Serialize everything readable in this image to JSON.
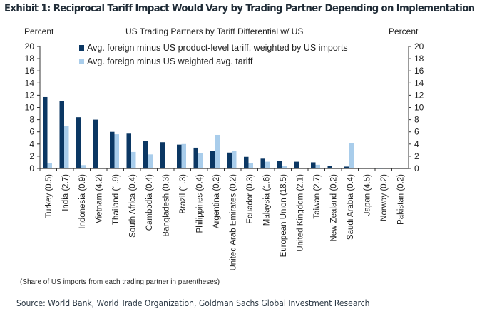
{
  "title": "Exhibit 1: Reciprocal Tariff Impact Would Vary by Trading Partner Depending on Implementation",
  "chart_data": {
    "type": "bar",
    "title": "US Trading  Partners by Tariff  Differential  w/ US",
    "ylabel_left": "Percent",
    "ylabel_right": "Percent",
    "xlabel": "",
    "ylim": [
      0,
      20
    ],
    "yticks": [
      0,
      2,
      4,
      6,
      8,
      10,
      12,
      14,
      16,
      18,
      20
    ],
    "grid": false,
    "legend_position": "top",
    "categories": [
      "Turkey (0.5)",
      "India (2.7)",
      "Indonesia (0.9)",
      "Vietnam (4.2)",
      "Thailand (1.9)",
      "South Africa (0.4)",
      "Cambodia (0.4)",
      "Bangladesh (0.3)",
      "Brazil (1.3)",
      "Philippines (0.4)",
      "Argentina (0.2)",
      "United Arab Emirates (0.2)",
      "Ecuador (0.3)",
      "Malaysia (1.6)",
      "European Union (18.5)",
      "United Kingdom (2.1)",
      "Taiwan (2.7)",
      "New Zealand (0.2)",
      "Saudi Arabia (0.4)",
      "Japan (4.5)",
      "Norway (0.2)",
      "Pakistan (0.2)"
    ],
    "series": [
      {
        "name": "Avg. foreign minus US product-level tariff, weighted by US imports",
        "color": "#0b3763",
        "values": [
          11.7,
          11.0,
          8.4,
          8.0,
          6.0,
          5.7,
          4.5,
          4.3,
          3.9,
          3.4,
          2.9,
          2.6,
          1.9,
          1.6,
          1.2,
          1.1,
          1.0,
          0.4,
          0.3,
          0.0,
          0.05,
          0.0
        ]
      },
      {
        "name": "Avg. foreign minus US weighted avg. tariff",
        "color": "#a9cdeb",
        "values": [
          0.9,
          6.9,
          0.55,
          0.0,
          5.6,
          2.7,
          2.3,
          0.0,
          4.0,
          2.5,
          5.5,
          2.9,
          0.9,
          1.1,
          0.4,
          0.0,
          0.6,
          0.0,
          4.2,
          0.1,
          0.0,
          0.0
        ]
      }
    ]
  },
  "footnote": "(Share of US imports from each trading partner in parentheses)",
  "source": "Source: World Bank, World Trade Organization, Goldman Sachs Global Investment Research"
}
